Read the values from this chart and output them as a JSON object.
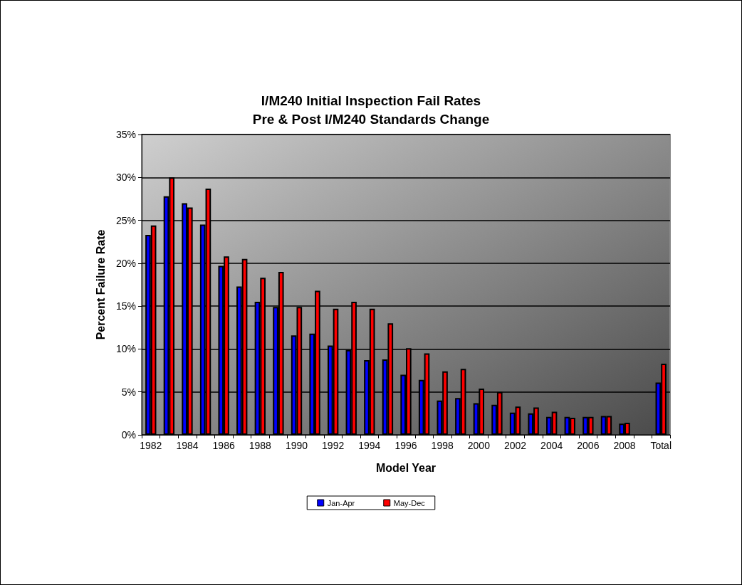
{
  "chart_data": {
    "type": "bar",
    "title": "I/M240 Initial Inspection Fail Rates\nPre & Post I/M240 Standards Change",
    "xlabel": "Model Year",
    "ylabel": "Percent Failure Rate",
    "categories": [
      "1982",
      null,
      "1984",
      null,
      "1986",
      null,
      "1988",
      null,
      "1990",
      null,
      "1992",
      null,
      "1994",
      null,
      "1996",
      null,
      "1998",
      null,
      "2000",
      null,
      "2002",
      null,
      "2004",
      null,
      "2006",
      null,
      "2008",
      null,
      "Total"
    ],
    "series": [
      {
        "name": "Jan-Apr",
        "color": "#0000ff",
        "values": [
          23.3,
          27.8,
          27.0,
          24.5,
          19.7,
          17.3,
          15.5,
          14.9,
          11.6,
          11.8,
          10.4,
          9.9,
          8.7,
          8.8,
          7.0,
          6.4,
          4.0,
          4.3,
          3.7,
          3.5,
          2.6,
          2.5,
          2.1,
          2.1,
          2.1,
          2.2,
          1.3,
          0,
          6.1
        ]
      },
      {
        "name": "May-Dec",
        "color": "#ff0000",
        "values": [
          24.4,
          30.0,
          26.5,
          28.7,
          20.8,
          20.5,
          18.3,
          19.0,
          14.9,
          16.8,
          14.7,
          15.5,
          14.7,
          13.0,
          10.1,
          9.5,
          7.4,
          7.7,
          5.4,
          5.0,
          3.3,
          3.2,
          2.7,
          2.0,
          2.1,
          2.2,
          1.4,
          0,
          8.3
        ]
      }
    ],
    "ylim": [
      0,
      35
    ],
    "yticks": [
      {
        "value": 0,
        "label": "0%"
      },
      {
        "value": 5,
        "label": "5%"
      },
      {
        "value": 10,
        "label": "10%"
      },
      {
        "value": 15,
        "label": "15%"
      },
      {
        "value": 20,
        "label": "20%"
      },
      {
        "value": 25,
        "label": "25%"
      },
      {
        "value": 30,
        "label": "30%"
      },
      {
        "value": 35,
        "label": "35%"
      }
    ],
    "grid": "y",
    "legend": "bottom"
  }
}
